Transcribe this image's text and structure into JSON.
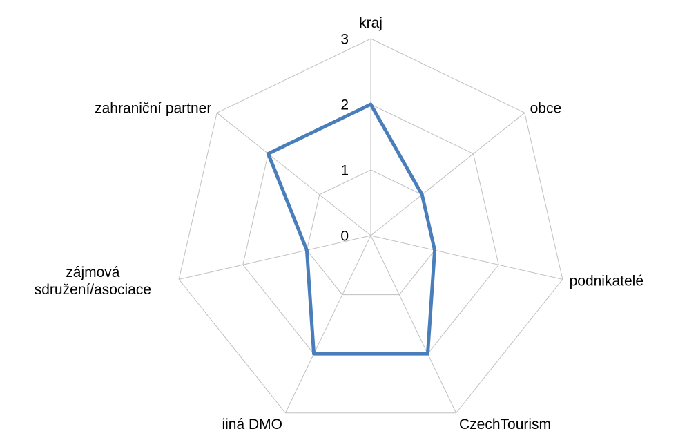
{
  "chart_data": {
    "type": "radar",
    "categories": [
      "kraj",
      "obce",
      "podnikatelé",
      "CzechTourism",
      "jiná DMO",
      "zájmová sdružení/asociace",
      "zahraniční partner"
    ],
    "series": [
      {
        "color": "#4a7ebb",
        "values": [
          2,
          1,
          1,
          2,
          2,
          1,
          2
        ]
      }
    ],
    "rlim": [
      0,
      3
    ],
    "rticks": [
      0,
      1,
      2,
      3
    ],
    "grid": true
  }
}
